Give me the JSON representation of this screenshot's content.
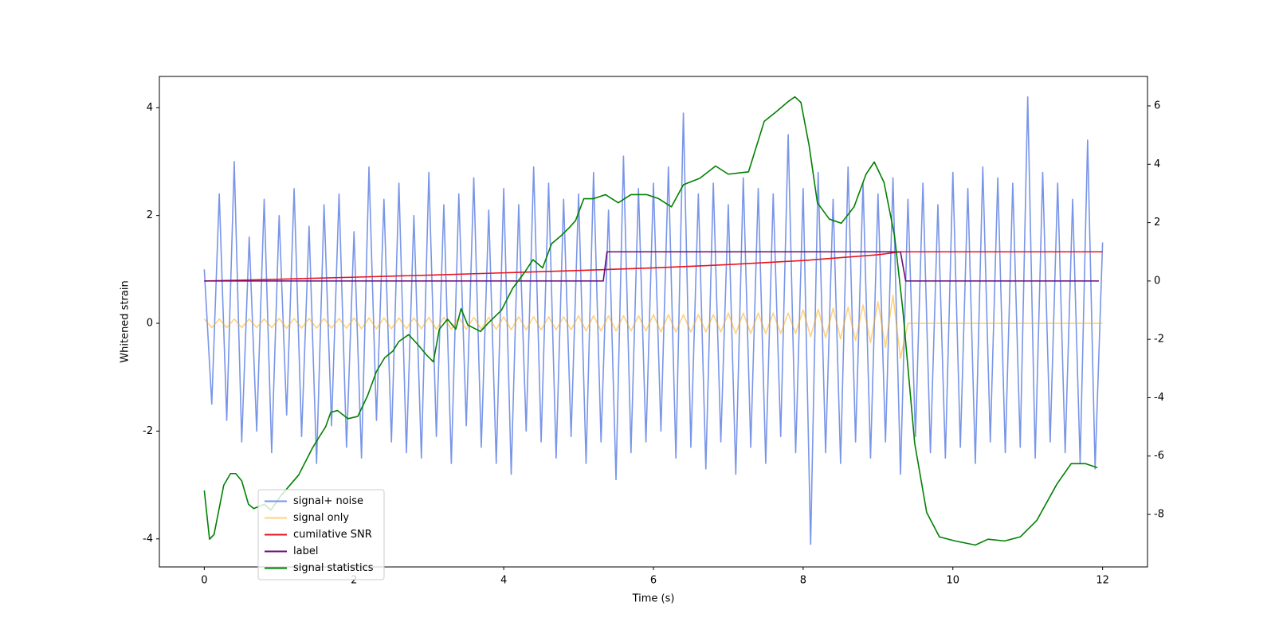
{
  "chart_data": {
    "type": "line",
    "xlabel": "Time (s)",
    "ylabel": "Whitened strain",
    "xlim": [
      -0.6,
      12.6
    ],
    "xticks": [
      0,
      2,
      4,
      6,
      8,
      10,
      12
    ],
    "ylim": [
      -4.52,
      4.58
    ],
    "yticks": [
      -4,
      -2,
      0,
      2,
      4
    ],
    "y2lim": [
      -9.8,
      7.01
    ],
    "y2ticks": [
      -8,
      -6,
      -4,
      -2,
      0,
      2,
      4,
      6
    ],
    "legend": "lower left",
    "x": [
      0,
      0.1,
      0.2,
      0.3,
      0.4,
      0.5,
      0.6,
      0.7,
      0.8,
      0.9,
      1,
      1.1,
      1.2,
      1.3,
      1.4,
      1.5,
      1.6,
      1.7,
      1.8,
      1.9,
      2,
      2.1,
      2.2,
      2.3,
      2.4,
      2.5,
      2.6,
      2.7,
      2.8,
      2.9,
      3,
      3.1,
      3.2,
      3.3,
      3.4,
      3.5,
      3.6,
      3.7,
      3.8,
      3.9,
      4,
      4.1,
      4.2,
      4.3,
      4.4,
      4.5,
      4.6,
      4.7,
      4.8,
      4.9,
      5,
      5.1,
      5.2,
      5.3,
      5.4,
      5.5,
      5.6,
      5.7,
      5.8,
      5.9,
      6,
      6.1,
      6.2,
      6.3,
      6.4,
      6.5,
      6.6,
      6.7,
      6.8,
      6.9,
      7,
      7.1,
      7.2,
      7.3,
      7.4,
      7.5,
      7.6,
      7.7,
      7.8,
      7.9,
      8,
      8.1,
      8.2,
      8.3,
      8.4,
      8.5,
      8.6,
      8.7,
      8.8,
      8.9,
      9,
      9.1,
      9.2,
      9.3,
      9.4,
      9.5,
      9.6,
      9.7,
      9.8,
      9.9,
      10,
      10.1,
      10.2,
      10.3,
      10.4,
      10.5,
      10.6,
      10.7,
      10.8,
      10.9,
      11,
      11.1,
      11.2,
      11.3,
      11.4,
      11.5,
      11.6,
      11.7,
      11.8,
      11.9,
      12
    ],
    "series": [
      {
        "name": "signal+ noise",
        "color": "#6a8ae6",
        "opacity": 0.9,
        "axis": "y",
        "values": [
          1.0,
          -1.5,
          2.4,
          -1.8,
          3.0,
          -2.2,
          1.6,
          -2.0,
          2.3,
          -2.4,
          2.0,
          -1.7,
          2.5,
          -2.1,
          1.8,
          -2.6,
          2.2,
          -1.9,
          2.4,
          -2.3,
          1.7,
          -2.5,
          2.9,
          -1.8,
          2.3,
          -2.2,
          2.6,
          -2.4,
          2.0,
          -2.5,
          2.8,
          -2.1,
          2.2,
          -2.6,
          2.4,
          -1.9,
          2.7,
          -2.3,
          2.1,
          -2.6,
          2.5,
          -2.8,
          2.2,
          -2.0,
          2.9,
          -2.2,
          2.6,
          -2.5,
          2.3,
          -2.1,
          2.4,
          -2.6,
          2.8,
          -2.2,
          2.1,
          -2.9,
          3.1,
          -2.4,
          2.5,
          -2.2,
          2.6,
          -2.0,
          2.9,
          -2.5,
          3.9,
          -2.3,
          2.4,
          -2.7,
          2.6,
          -2.2,
          2.2,
          -2.8,
          2.7,
          -2.3,
          2.5,
          -2.6,
          2.4,
          -2.1,
          3.5,
          -2.4,
          2.5,
          -4.1,
          2.8,
          -2.4,
          2.3,
          -2.6,
          2.9,
          -2.2,
          2.6,
          -2.5,
          2.4,
          -2.2,
          2.7,
          -2.8,
          2.3,
          -2.1,
          2.6,
          -2.4,
          2.2,
          -2.5,
          2.8,
          -2.3,
          2.5,
          -2.6,
          2.9,
          -2.2,
          2.7,
          -2.4,
          2.6,
          -2.3,
          4.2,
          -2.5,
          2.8,
          -2.2,
          2.6,
          -2.4,
          2.3,
          -2.6,
          3.4,
          -2.7,
          1.5
        ]
      },
      {
        "name": "signal only",
        "color": "#ffa500",
        "opacity": 0.5,
        "axis": "y",
        "values": [
          0.08,
          -0.08,
          0.08,
          -0.08,
          0.08,
          -0.08,
          0.08,
          -0.08,
          0.08,
          -0.08,
          0.09,
          -0.09,
          0.09,
          -0.09,
          0.09,
          -0.09,
          0.09,
          -0.09,
          0.09,
          -0.09,
          0.1,
          -0.1,
          0.1,
          -0.1,
          0.1,
          -0.1,
          0.1,
          -0.1,
          0.1,
          -0.1,
          0.11,
          -0.11,
          0.11,
          -0.11,
          0.11,
          -0.11,
          0.11,
          -0.11,
          0.11,
          -0.11,
          0.12,
          -0.12,
          0.12,
          -0.12,
          0.12,
          -0.12,
          0.12,
          -0.12,
          0.12,
          -0.12,
          0.14,
          -0.14,
          0.14,
          -0.14,
          0.14,
          -0.14,
          0.14,
          -0.14,
          0.14,
          -0.14,
          0.16,
          -0.16,
          0.16,
          -0.16,
          0.16,
          -0.16,
          0.16,
          -0.16,
          0.16,
          -0.16,
          0.19,
          -0.19,
          0.19,
          -0.19,
          0.19,
          -0.19,
          0.19,
          -0.19,
          0.19,
          -0.19,
          0.25,
          -0.25,
          0.26,
          -0.27,
          0.28,
          -0.29,
          0.3,
          -0.32,
          0.34,
          -0.36,
          0.4,
          -0.45,
          0.52,
          -0.65,
          0,
          0,
          0,
          0,
          0,
          0,
          0,
          0,
          0,
          0,
          0,
          0,
          0,
          0,
          0,
          0,
          0,
          0,
          0,
          0,
          0,
          0,
          0,
          0,
          0,
          0,
          0
        ]
      },
      {
        "name": "cumilative SNR",
        "color": "#e8141e",
        "opacity": 1,
        "axis": "y2",
        "x": [
          0,
          1,
          2,
          3,
          4,
          5,
          6,
          7,
          8,
          8.5,
          9,
          9.3,
          9.35,
          12
        ],
        "values": [
          0,
          0.06,
          0.13,
          0.2,
          0.28,
          0.36,
          0.45,
          0.56,
          0.7,
          0.8,
          0.9,
          1.0,
          1.0,
          1.0
        ]
      },
      {
        "name": "label",
        "color": "#6a0a7a",
        "opacity": 1,
        "axis": "y2",
        "x": [
          0,
          5.33,
          5.38,
          9.3,
          9.37,
          11.95
        ],
        "values": [
          0,
          0,
          1,
          1,
          0,
          0
        ]
      },
      {
        "name": "signal statistics",
        "color": "#008000",
        "opacity": 1,
        "axis": "y2",
        "x": [
          0,
          0.07,
          0.13,
          0.26,
          0.35,
          0.42,
          0.5,
          0.59,
          0.66,
          0.8,
          0.89,
          1.02,
          1.26,
          1.45,
          1.62,
          1.69,
          1.78,
          1.92,
          2.05,
          2.18,
          2.3,
          2.41,
          2.52,
          2.6,
          2.73,
          2.86,
          2.97,
          3.06,
          3.14,
          3.25,
          3.36,
          3.43,
          3.52,
          3.69,
          3.79,
          3.97,
          4.12,
          4.28,
          4.39,
          4.52,
          4.64,
          4.77,
          4.88,
          4.96,
          5.07,
          5.2,
          5.36,
          5.53,
          5.7,
          5.91,
          6.07,
          6.24,
          6.4,
          6.62,
          6.83,
          7.0,
          7.27,
          7.48,
          7.64,
          7.81,
          7.89,
          7.97,
          8.08,
          8.19,
          8.35,
          8.51,
          8.68,
          8.84,
          8.95,
          9.08,
          9.22,
          9.33,
          9.49,
          9.65,
          9.82,
          10.03,
          10.3,
          10.47,
          10.69,
          10.9,
          11.12,
          11.39,
          11.58,
          11.77,
          11.93
        ],
        "values": [
          -7.18,
          -8.85,
          -8.69,
          -7.0,
          -6.6,
          -6.6,
          -6.85,
          -7.65,
          -7.8,
          -7.65,
          -7.85,
          -7.37,
          -6.65,
          -5.7,
          -5.0,
          -4.5,
          -4.44,
          -4.72,
          -4.64,
          -3.94,
          -3.1,
          -2.63,
          -2.4,
          -2.07,
          -1.84,
          -2.2,
          -2.54,
          -2.77,
          -1.65,
          -1.31,
          -1.65,
          -0.95,
          -1.51,
          -1.73,
          -1.45,
          -1.0,
          -0.25,
          0.3,
          0.73,
          0.45,
          1.28,
          1.56,
          1.84,
          2.07,
          2.82,
          2.82,
          2.96,
          2.68,
          2.96,
          2.96,
          2.82,
          2.54,
          3.3,
          3.52,
          3.94,
          3.66,
          3.74,
          5.47,
          5.8,
          6.17,
          6.31,
          6.12,
          4.64,
          2.68,
          2.12,
          1.98,
          2.54,
          3.66,
          4.08,
          3.38,
          1.56,
          -0.95,
          -5.56,
          -7.93,
          -8.77,
          -8.91,
          -9.05,
          -8.85,
          -8.91,
          -8.77,
          -8.21,
          -6.96,
          -6.26,
          -6.26,
          -6.4
        ]
      }
    ]
  }
}
